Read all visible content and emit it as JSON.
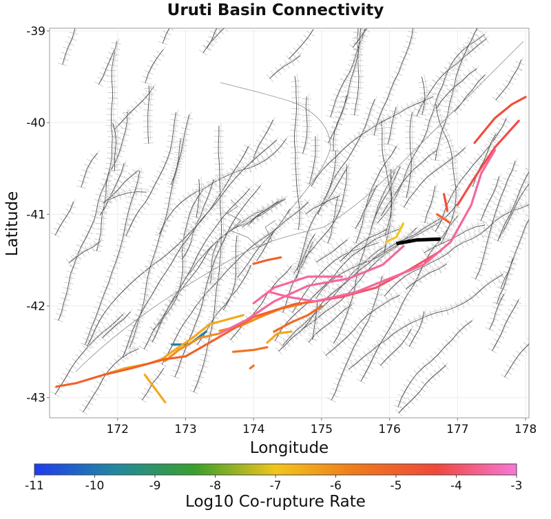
{
  "title": "Uruti Basin Connectivity",
  "chart_data": {
    "type": "map",
    "title": "Uruti Basin Connectivity",
    "xlabel": "Longitude",
    "ylabel": "Latitude",
    "xlim": [
      171.0,
      178.05
    ],
    "ylim": [
      -43.22,
      -38.97
    ],
    "xticks": [
      172,
      173,
      174,
      175,
      176,
      177,
      178
    ],
    "yticks": [
      -39,
      -40,
      -41,
      -42,
      -43
    ],
    "colorbar": {
      "label": "Log10 Co-rupture Rate",
      "range": [
        -11,
        -3
      ],
      "ticks": [
        -11,
        -10,
        -9,
        -8,
        -7,
        -6,
        -5,
        -4,
        -3
      ],
      "colors": [
        "#1f3cf0",
        "#2288a0",
        "#3aa02c",
        "#f2c51c",
        "#f07a1c",
        "#f0483c",
        "#f878d8"
      ]
    },
    "source_fault": {
      "name": "Uruti Basin",
      "color": "#000000",
      "path": [
        [
          176.1,
          -41.32
        ],
        [
          176.4,
          -41.28
        ],
        [
          176.75,
          -41.27
        ]
      ]
    },
    "ruptures": [
      {
        "rate": -3.5,
        "path": [
          [
            173.5,
            -42.3
          ],
          [
            173.9,
            -42.15
          ],
          [
            174.3,
            -41.95
          ],
          [
            174.8,
            -41.78
          ],
          [
            175.4,
            -41.7
          ],
          [
            175.9,
            -41.55
          ],
          [
            176.2,
            -41.35
          ]
        ]
      },
      {
        "rate": -3.5,
        "path": [
          [
            174.0,
            -41.97
          ],
          [
            174.3,
            -41.8
          ],
          [
            174.8,
            -41.68
          ],
          [
            175.3,
            -41.68
          ]
        ]
      },
      {
        "rate": -3.5,
        "path": [
          [
            174.25,
            -41.85
          ],
          [
            174.5,
            -41.9
          ],
          [
            174.9,
            -41.95
          ],
          [
            175.5,
            -41.85
          ],
          [
            176.0,
            -41.7
          ],
          [
            176.5,
            -41.55
          ],
          [
            176.9,
            -41.3
          ],
          [
            177.2,
            -40.9
          ],
          [
            177.35,
            -40.55
          ],
          [
            177.55,
            -40.3
          ]
        ]
      },
      {
        "rate": -4.0,
        "path": [
          [
            174.9,
            -41.95
          ],
          [
            175.3,
            -41.9
          ],
          [
            175.8,
            -41.8
          ],
          [
            176.3,
            -41.6
          ],
          [
            176.75,
            -41.4
          ]
        ]
      },
      {
        "rate": -4.2,
        "path": [
          [
            177.0,
            -40.9
          ],
          [
            177.25,
            -40.6
          ],
          [
            177.55,
            -40.27
          ],
          [
            177.9,
            -39.98
          ]
        ]
      },
      {
        "rate": -4.5,
        "path": [
          [
            177.25,
            -40.22
          ],
          [
            177.55,
            -39.95
          ],
          [
            177.8,
            -39.8
          ],
          [
            178.0,
            -39.72
          ]
        ]
      },
      {
        "rate": -4.5,
        "path": [
          [
            176.8,
            -40.78
          ],
          [
            176.85,
            -40.96
          ]
        ]
      },
      {
        "rate": -5.0,
        "path": [
          [
            171.1,
            -42.88
          ],
          [
            171.4,
            -42.84
          ],
          [
            171.8,
            -42.75
          ],
          [
            172.2,
            -42.68
          ],
          [
            172.7,
            -42.58
          ],
          [
            173.0,
            -42.55
          ],
          [
            173.4,
            -42.38
          ],
          [
            173.7,
            -42.25
          ],
          [
            174.0,
            -42.12
          ],
          [
            174.3,
            -42.05
          ],
          [
            174.6,
            -41.98
          ],
          [
            174.9,
            -41.95
          ]
        ]
      },
      {
        "rate": -5.0,
        "path": [
          [
            174.0,
            -41.54
          ],
          [
            174.2,
            -41.5
          ],
          [
            174.4,
            -41.47
          ]
        ]
      },
      {
        "rate": -5.0,
        "path": [
          [
            176.7,
            -41.0
          ],
          [
            176.88,
            -41.09
          ]
        ]
      },
      {
        "rate": -5.2,
        "path": [
          [
            174.3,
            -42.28
          ],
          [
            174.55,
            -42.18
          ],
          [
            174.8,
            -42.1
          ],
          [
            175.0,
            -42.0
          ]
        ]
      },
      {
        "rate": -5.5,
        "path": [
          [
            173.7,
            -42.5
          ],
          [
            174.0,
            -42.48
          ],
          [
            174.2,
            -42.45
          ]
        ]
      },
      {
        "rate": -5.5,
        "path": [
          [
            173.95,
            -42.68
          ],
          [
            174.0,
            -42.65
          ]
        ]
      },
      {
        "rate": -6.0,
        "path": [
          [
            172.7,
            -42.6
          ],
          [
            172.9,
            -42.48
          ],
          [
            173.2,
            -42.35
          ],
          [
            173.5,
            -42.3
          ]
        ]
      },
      {
        "rate": -6.0,
        "path": [
          [
            173.5,
            -42.27
          ],
          [
            173.8,
            -42.22
          ],
          [
            174.1,
            -42.12
          ],
          [
            174.4,
            -42.03
          ],
          [
            174.7,
            -41.98
          ]
        ]
      },
      {
        "rate": -6.5,
        "path": [
          [
            171.8,
            -42.75
          ],
          [
            172.1,
            -42.68
          ],
          [
            172.45,
            -42.63
          ],
          [
            172.65,
            -42.58
          ],
          [
            172.8,
            -42.5
          ],
          [
            173.1,
            -42.35
          ],
          [
            173.35,
            -42.2
          ],
          [
            173.6,
            -42.15
          ],
          [
            173.85,
            -42.1
          ]
        ]
      },
      {
        "rate": -6.5,
        "path": [
          [
            172.4,
            -42.75
          ],
          [
            172.55,
            -42.9
          ],
          [
            172.7,
            -43.05
          ]
        ]
      },
      {
        "rate": -6.5,
        "path": [
          [
            174.2,
            -42.4
          ],
          [
            174.35,
            -42.3
          ],
          [
            174.55,
            -42.28
          ]
        ]
      },
      {
        "rate": -7.0,
        "path": [
          [
            175.95,
            -41.3
          ],
          [
            176.1,
            -41.25
          ],
          [
            176.2,
            -41.1
          ]
        ]
      },
      {
        "rate": -9.8,
        "path": [
          [
            172.8,
            -42.42
          ],
          [
            173.05,
            -42.42
          ],
          [
            173.3,
            -42.28
          ]
        ]
      }
    ]
  }
}
